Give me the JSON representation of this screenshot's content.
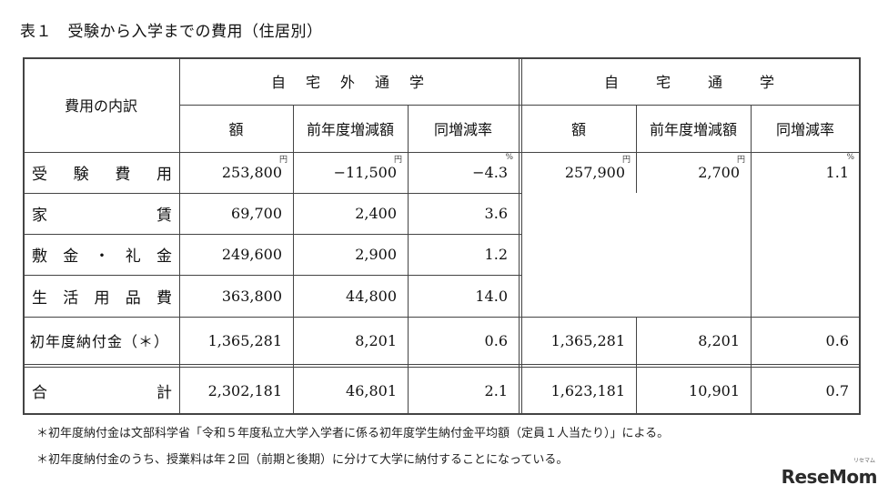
{
  "title": "表１　受験から入学までの費用（住居別）",
  "header": {
    "category_label": "費用の内訳",
    "group_away": "自　宅　外　通　学",
    "group_home": "自　　宅　　通　　学",
    "col_amount": "額",
    "col_change": "前年度増減額",
    "col_rate": "同増減率"
  },
  "units": {
    "yen": "円",
    "percent": "%"
  },
  "rows": [
    {
      "label": "受験費用",
      "away": [
        "253,800",
        "−11,500",
        "−4.3"
      ],
      "home": [
        "257,900",
        "2,700",
        "1.1"
      ]
    },
    {
      "label": "家賃",
      "away": [
        "69,700",
        "2,400",
        "3.6"
      ],
      "home": [
        "",
        "",
        ""
      ]
    },
    {
      "label": "敷金・礼金",
      "away": [
        "249,600",
        "2,900",
        "1.2"
      ],
      "home": [
        "",
        "",
        ""
      ]
    },
    {
      "label": "生活用品費",
      "away": [
        "363,800",
        "44,800",
        "14.0"
      ],
      "home": [
        "",
        "",
        ""
      ]
    },
    {
      "label": "初年度納付金（＊）",
      "away": [
        "1,365,281",
        "8,201",
        "0.6"
      ],
      "home": [
        "1,365,281",
        "8,201",
        "0.6"
      ]
    },
    {
      "label": "合計",
      "away": [
        "2,302,181",
        "46,801",
        "2.1"
      ],
      "home": [
        "1,623,181",
        "10,901",
        "0.7"
      ]
    }
  ],
  "notes": [
    "＊初年度納付金は文部科学省「令和５年度私立大学入学者に係る初年度学生納付金平均額（定員１人当たり）」による。",
    "＊初年度納付金のうち、授業料は年２回（前期と後期）に分けて大学に納付することになっている。"
  ],
  "logo": "ReseMom",
  "logo_small": "リセマム"
}
